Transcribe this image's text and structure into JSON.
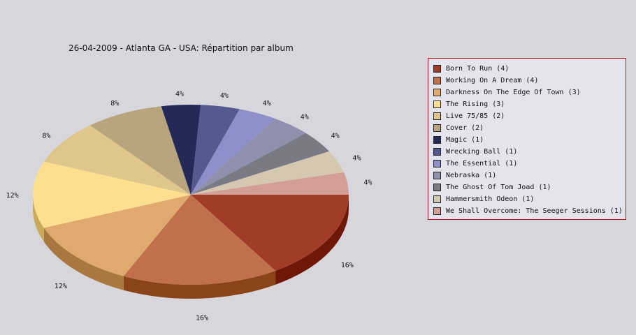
{
  "chart_data": {
    "type": "pie",
    "title": "26-04-2009 - Atlanta GA - USA:  Répartition par album",
    "legend_position": "right",
    "slices": [
      {
        "label": "Born To Run (4)",
        "value": 4,
        "pct_label": "16%",
        "color": "#a03c28",
        "side": "#701808"
      },
      {
        "label": "Working On A Dream (4)",
        "value": 4,
        "pct_label": "16%",
        "color": "#c0704a",
        "side": "#8a4418"
      },
      {
        "label": "Darkness On The Edge Of Town (3)",
        "value": 3,
        "pct_label": "12%",
        "color": "#e0aa6e",
        "side": "#a8783e"
      },
      {
        "label": "The Rising (3)",
        "value": 3,
        "pct_label": "12%",
        "color": "#fedf90",
        "side": "#c8aa58"
      },
      {
        "label": "Live 75/85 (2)",
        "value": 2,
        "pct_label": "8%",
        "color": "#dfc68a",
        "side": "#a89050"
      },
      {
        "label": "Cover (2)",
        "value": 2,
        "pct_label": "8%",
        "color": "#b8a57e",
        "side": "#84734e"
      },
      {
        "label": "Magic (1)",
        "value": 1,
        "pct_label": "4%",
        "color": "#232a58",
        "side": "#141838"
      },
      {
        "label": "Wrecking Ball (1)",
        "value": 1,
        "pct_label": "4%",
        "color": "#545a90",
        "side": "#343868"
      },
      {
        "label": "The Essential (1)",
        "value": 1,
        "pct_label": "4%",
        "color": "#8c8fc8",
        "side": "#5e6098"
      },
      {
        "label": "Nebraska (1)",
        "value": 1,
        "pct_label": "4%",
        "color": "#9090ac",
        "side": "#64647e"
      },
      {
        "label": "The Ghost Of Tom Joad (1)",
        "value": 1,
        "pct_label": "4%",
        "color": "#7a7a84",
        "side": "#52525a"
      },
      {
        "label": "Hammersmith Odeon  (1)",
        "value": 1,
        "pct_label": "4%",
        "color": "#d4c9b0",
        "side": "#a49a80"
      },
      {
        "label": "We Shall Overcome: The Seeger Sessions (1)",
        "value": 1,
        "pct_label": "4%",
        "color": "#d49e98",
        "side": "#a06e68"
      }
    ]
  }
}
